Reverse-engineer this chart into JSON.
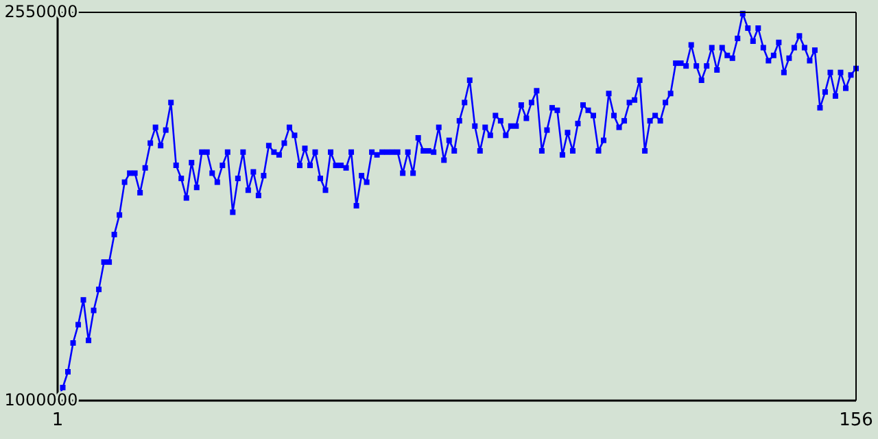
{
  "chart_data": {
    "type": "line",
    "x": [
      1,
      2,
      3,
      4,
      5,
      6,
      7,
      8,
      9,
      10,
      11,
      12,
      13,
      14,
      15,
      16,
      17,
      18,
      19,
      20,
      21,
      22,
      23,
      24,
      25,
      26,
      27,
      28,
      29,
      30,
      31,
      32,
      33,
      34,
      35,
      36,
      37,
      38,
      39,
      40,
      41,
      42,
      43,
      44,
      45,
      46,
      47,
      48,
      49,
      50,
      51,
      52,
      53,
      54,
      55,
      56,
      57,
      58,
      59,
      60,
      61,
      62,
      63,
      64,
      65,
      66,
      67,
      68,
      69,
      70,
      71,
      72,
      73,
      74,
      75,
      76,
      77,
      78,
      79,
      80,
      81,
      82,
      83,
      84,
      85,
      86,
      87,
      88,
      89,
      90,
      91,
      92,
      93,
      94,
      95,
      96,
      97,
      98,
      99,
      100,
      101,
      102,
      103,
      104,
      105,
      106,
      107,
      108,
      109,
      110,
      111,
      112,
      113,
      114,
      115,
      116,
      117,
      118,
      119,
      120,
      121,
      122,
      123,
      124,
      125,
      126,
      127,
      128,
      129,
      130,
      131,
      132,
      133,
      134,
      135,
      136,
      137,
      138,
      139,
      140,
      141,
      142,
      143,
      144,
      145,
      146,
      147,
      148,
      149,
      150,
      151,
      152,
      153,
      154,
      155,
      156
    ],
    "series": [
      {
        "color": "#0000ff",
        "values": [
          1000000,
          1052000,
          1115000,
          1230000,
          1303000,
          1402000,
          1240000,
          1360000,
          1444000,
          1553000,
          1553000,
          1663000,
          1741000,
          1872000,
          1908000,
          1908000,
          1830000,
          1929000,
          2028000,
          2091000,
          2018000,
          2080000,
          2190000,
          1939000,
          1887000,
          1809000,
          1950000,
          1851000,
          1992000,
          1992000,
          1908000,
          1872000,
          1939000,
          1992000,
          1752000,
          1887000,
          1992000,
          1840000,
          1913000,
          1819000,
          1898000,
          2018000,
          1992000,
          1981000,
          2028000,
          2091000,
          2059000,
          1939000,
          2007000,
          1939000,
          1992000,
          1887000,
          1840000,
          1992000,
          1939000,
          1939000,
          1929000,
          1992000,
          1778000,
          1898000,
          1872000,
          1992000,
          1981000,
          1992000,
          1992000,
          1992000,
          1992000,
          1908000,
          1992000,
          1908000,
          2049000,
          1997000,
          1997000,
          1992000,
          2091000,
          1960000,
          2039000,
          1997000,
          2117000,
          2190000,
          2279000,
          2096000,
          1997000,
          2091000,
          2059000,
          2138000,
          2117000,
          2059000,
          2096000,
          2096000,
          2180000,
          2127000,
          2190000,
          2237000,
          1997000,
          2080000,
          2169000,
          2159000,
          1981000,
          2070000,
          1997000,
          2106000,
          2180000,
          2159000,
          2138000,
          1997000,
          2039000,
          2226000,
          2138000,
          2091000,
          2117000,
          2190000,
          2200000,
          2279000,
          1997000,
          2117000,
          2138000,
          2117000,
          2190000,
          2226000,
          2347000,
          2347000,
          2336000,
          2420000,
          2336000,
          2279000,
          2336000,
          2409000,
          2320000,
          2409000,
          2378000,
          2367000,
          2446000,
          2545000,
          2487000,
          2435000,
          2487000,
          2409000,
          2357000,
          2378000,
          2430000,
          2310000,
          2367000,
          2409000,
          2456000,
          2409000,
          2357000,
          2399000,
          2169000,
          2232000,
          2310000,
          2216000,
          2310000,
          2247000,
          2300000,
          2326000
        ]
      }
    ],
    "xlim": [
      1,
      156
    ],
    "xticks": [
      1,
      156
    ],
    "ylim": [
      1000000,
      2550000
    ],
    "yticks": [
      1000000,
      2550000
    ],
    "marker": "square",
    "grid": false
  }
}
